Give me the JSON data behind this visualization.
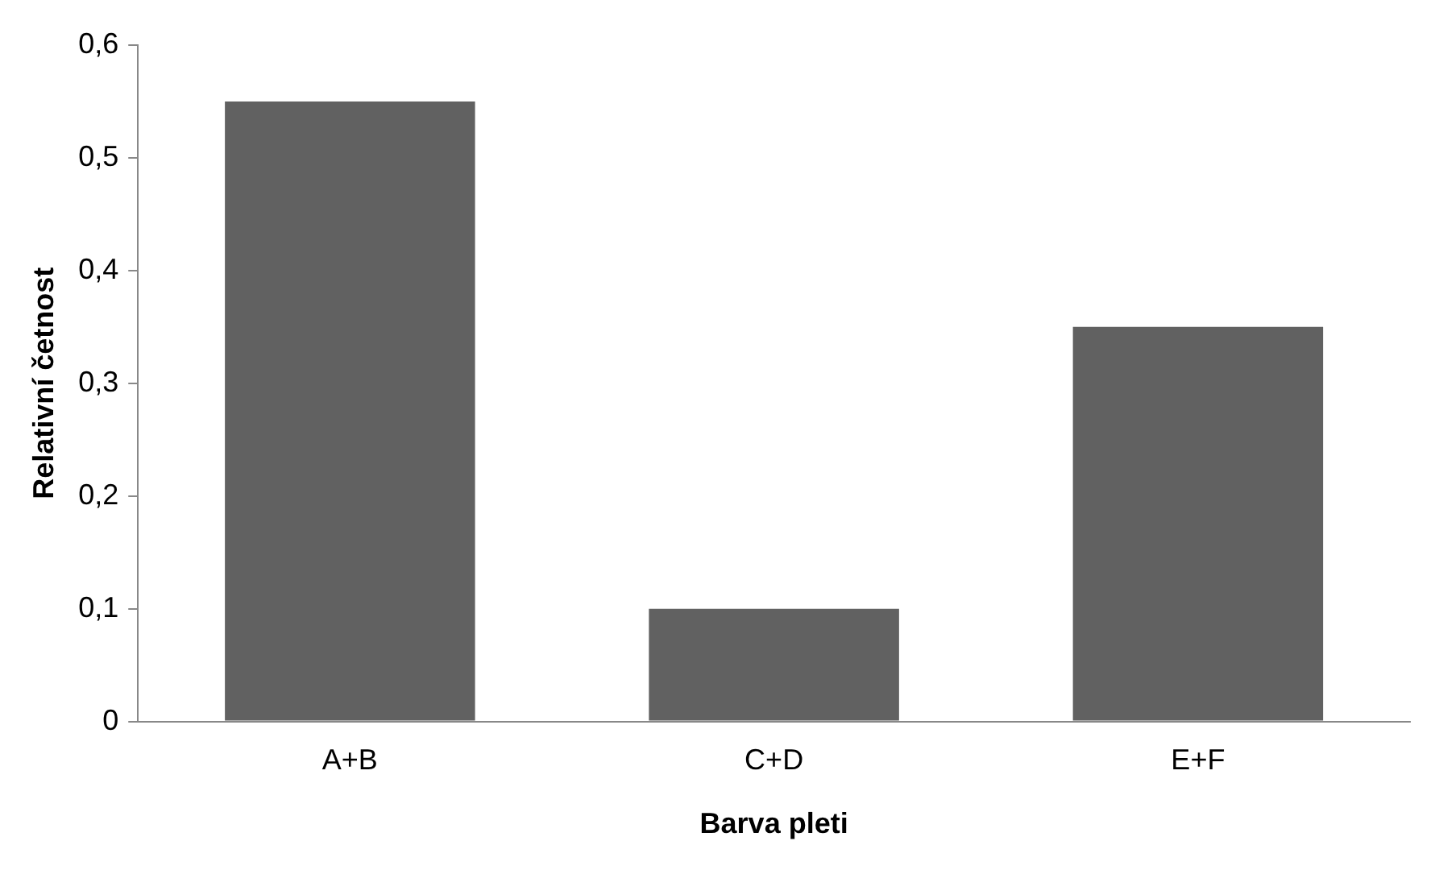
{
  "chart_data": {
    "type": "bar",
    "xlabel": "Barva pleti",
    "ylabel": "Relativní četnost",
    "categories": [
      "A+B",
      "C+D",
      "E+F"
    ],
    "values": [
      0.55,
      0.1,
      0.35
    ],
    "color": "#616161",
    "ylim": [
      0,
      0.6
    ],
    "yticks": [
      0,
      {
        "value": 0.1,
        "label": "0,1"
      },
      {
        "value": 0.2,
        "label": "0,2"
      },
      {
        "value": 0.3,
        "label": "0,3"
      },
      {
        "value": 0.4,
        "label": "0,4"
      },
      {
        "value": 0.5,
        "label": "0,5"
      },
      {
        "value": 0.6,
        "label": "0,6"
      }
    ],
    "grid": false,
    "legend": false
  }
}
